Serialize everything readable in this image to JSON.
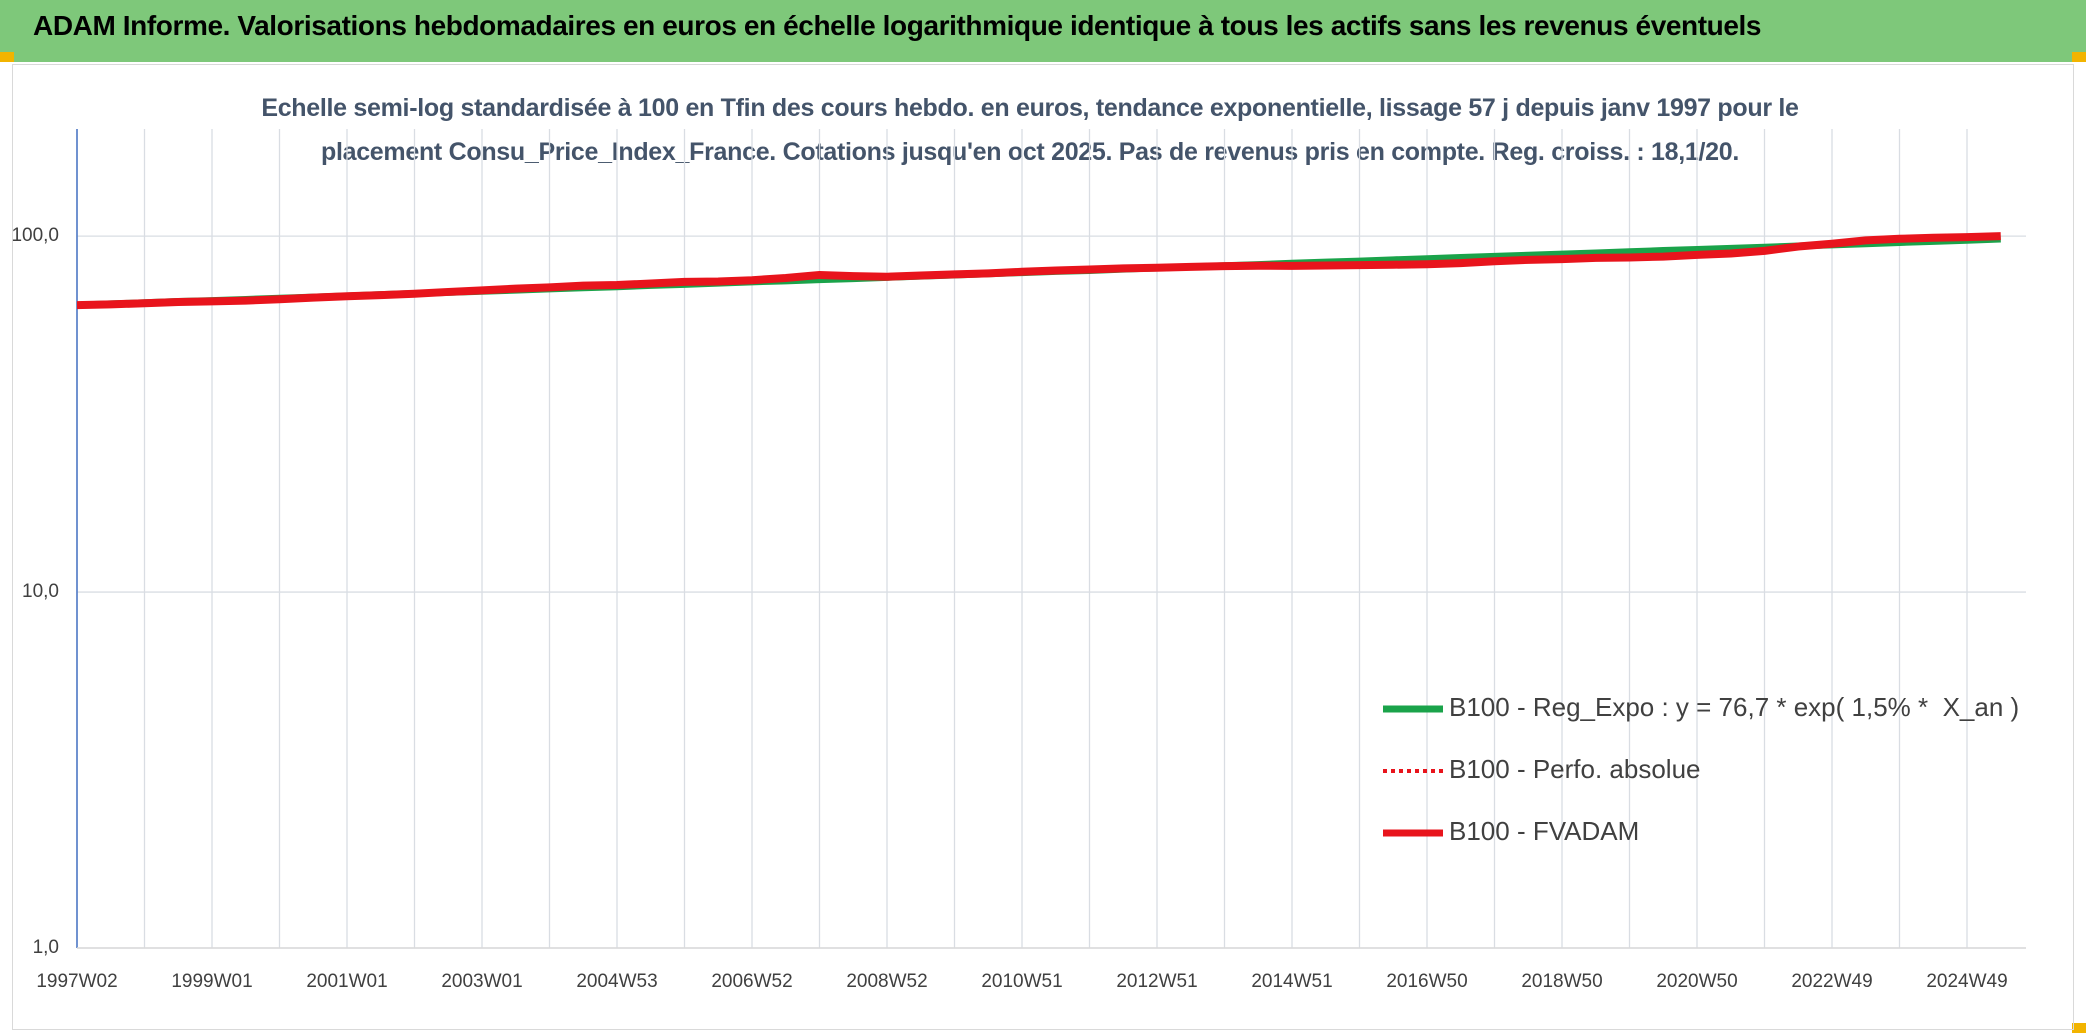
{
  "chart_data": {
    "type": "line",
    "title": "ADAM Informe. Valorisations hebdomadaires en euros en échelle logarithmique identique à tous les actifs sans les revenus éventuels",
    "subtitle": "Echelle semi-log standardisée à 100 en Tfin des cours hebdo. en euros, tendance exponentielle, lissage 57 j depuis janv 1997 pour le placement Consu_Price_Index_France. Cotations jusqu'en oct 2025. Pas de revenus pris en compte. Reg. croiss. : 18,1/20.",
    "log_scale": true,
    "grid": true,
    "legend_position": "right",
    "ylim": [
      1,
      200
    ],
    "yticks": [
      {
        "value": 1,
        "label": "1,0"
      },
      {
        "value": 10,
        "label": "10,0"
      },
      {
        "value": 100,
        "label": "100,0"
      }
    ],
    "categories": [
      "1997W02",
      null,
      null,
      null,
      "1999W01",
      null,
      null,
      null,
      "2001W01",
      null,
      null,
      null,
      "2003W01",
      null,
      null,
      null,
      "2004W53",
      null,
      null,
      null,
      "2006W52",
      null,
      null,
      null,
      "2008W52",
      null,
      null,
      null,
      "2010W51",
      null,
      null,
      null,
      "2012W51",
      null,
      null,
      null,
      "2014W51",
      null,
      null,
      null,
      "2016W50",
      null,
      null,
      null,
      "2018W50",
      null,
      null,
      null,
      "2020W50",
      null,
      null,
      null,
      "2022W49",
      null,
      null,
      null,
      "2024W49",
      null
    ],
    "series": [
      {
        "name": "B100 - Reg_Expo : y = 76,7 * exp( 1,5% *  X_an )",
        "color": "#1aa34a",
        "line_style": "solid",
        "values": [
          64.0,
          64.5,
          65.0,
          65.5,
          65.9,
          66.4,
          66.9,
          67.4,
          67.9,
          68.5,
          69.0,
          69.5,
          70.0,
          70.5,
          71.1,
          71.6,
          72.1,
          72.7,
          73.2,
          73.8,
          74.4,
          74.9,
          75.5,
          76.0,
          76.6,
          77.2,
          77.8,
          78.4,
          79.0,
          79.6,
          80.1,
          80.8,
          81.4,
          82.0,
          82.6,
          83.2,
          83.9,
          84.5,
          85.1,
          85.8,
          86.4,
          87.1,
          87.7,
          88.4,
          89.0,
          89.7,
          90.4,
          91.1,
          91.7,
          92.4,
          93.1,
          93.8,
          94.5,
          95.2,
          96.0,
          96.7,
          97.4,
          98.2
        ]
      },
      {
        "name": "B100 - Perfo. absolue",
        "color": "#e8141c",
        "line_style": "dotted",
        "values": [
          64.0,
          64.3,
          64.8,
          65.3,
          65.6,
          65.9,
          66.5,
          67.2,
          67.8,
          68.3,
          68.9,
          69.7,
          70.4,
          71.2,
          71.8,
          72.6,
          72.9,
          73.6,
          74.4,
          74.6,
          75.2,
          76.3,
          77.8,
          77.2,
          76.9,
          77.5,
          78.1,
          78.6,
          79.4,
          80.1,
          80.6,
          81.2,
          81.5,
          82.0,
          82.4,
          82.6,
          82.5,
          82.7,
          82.9,
          83.1,
          83.4,
          84.0,
          85.0,
          85.8,
          86.2,
          86.9,
          87.1,
          87.6,
          88.6,
          89.4,
          90.9,
          93.5,
          95.2,
          97.3,
          98.3,
          99.0,
          99.4,
          100.0
        ]
      },
      {
        "name": "B100 - FVADAM",
        "color": "#e8141c",
        "line_style": "solid",
        "values": [
          64.0,
          64.3,
          64.8,
          65.3,
          65.6,
          65.9,
          66.5,
          67.2,
          67.8,
          68.3,
          68.9,
          69.7,
          70.4,
          71.2,
          71.8,
          72.6,
          72.9,
          73.6,
          74.4,
          74.6,
          75.2,
          76.3,
          77.8,
          77.2,
          76.9,
          77.5,
          78.1,
          78.6,
          79.4,
          80.1,
          80.6,
          81.2,
          81.5,
          82.0,
          82.4,
          82.6,
          82.5,
          82.7,
          82.9,
          83.1,
          83.4,
          84.0,
          85.0,
          85.8,
          86.2,
          86.9,
          87.1,
          87.6,
          88.6,
          89.4,
          90.9,
          93.5,
          95.2,
          97.3,
          98.3,
          99.0,
          99.4,
          100.0
        ]
      }
    ]
  }
}
